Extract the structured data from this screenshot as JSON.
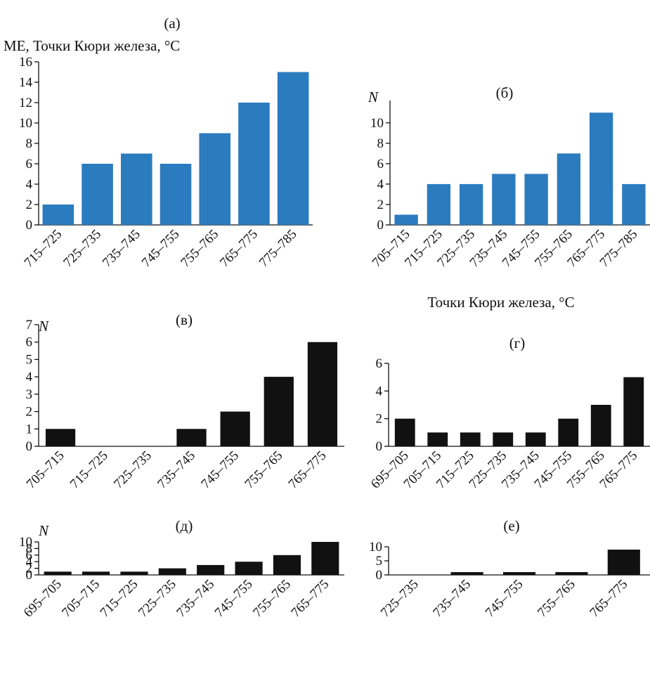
{
  "chart_data": [
    {
      "type": "bar",
      "panel": "(а)",
      "title": "МЕ, Точки Кюри железа, °С",
      "ylabel": "",
      "xlabel": "",
      "color": "#2b7bbf",
      "categories": [
        "715–725",
        "725–735",
        "735–745",
        "745–755",
        "755–765",
        "765–775",
        "775–785"
      ],
      "values": [
        2,
        6,
        7,
        6,
        9,
        12,
        15
      ],
      "ylim": [
        0,
        16
      ],
      "yticks": [
        0,
        2,
        4,
        6,
        8,
        10,
        12,
        14,
        16
      ],
      "grid": false,
      "legend": "none"
    },
    {
      "type": "bar",
      "panel": "(б)",
      "title": "",
      "ylabel": "N",
      "xlabel": "Точки Кюри железа, °С",
      "color": "#2b7bbf",
      "categories": [
        "705–715",
        "715–725",
        "725–735",
        "735–745",
        "745–755",
        "755–765",
        "765–775",
        "775–785"
      ],
      "values": [
        1,
        4,
        4,
        5,
        5,
        7,
        11,
        4
      ],
      "ylim": [
        0,
        11.5
      ],
      "yticks": [
        0,
        2,
        4,
        6,
        8,
        10
      ],
      "grid": false,
      "legend": "none"
    },
    {
      "type": "bar",
      "panel": "(в)",
      "title": "",
      "ylabel": "N",
      "xlabel": "",
      "color": "#111111",
      "categories": [
        "705–715",
        "715–725",
        "725–735",
        "735–745",
        "745–755",
        "755–765",
        "765–775"
      ],
      "values": [
        1,
        0,
        0,
        1,
        2,
        4,
        6
      ],
      "ylim": [
        0,
        7
      ],
      "yticks": [
        0,
        1,
        2,
        3,
        4,
        5,
        6,
        7
      ],
      "grid": false,
      "legend": "none"
    },
    {
      "type": "bar",
      "panel": "(г)",
      "title": "",
      "ylabel": "",
      "xlabel": "",
      "color": "#111111",
      "categories": [
        "695–705",
        "705–715",
        "715–725",
        "725–735",
        "735–745",
        "745–755",
        "755–765",
        "765–775"
      ],
      "values": [
        2,
        1,
        1,
        1,
        1,
        2,
        3,
        5
      ],
      "ylim": [
        0,
        6
      ],
      "yticks": [
        0,
        2,
        4,
        6
      ],
      "grid": false,
      "legend": "none"
    },
    {
      "type": "bar",
      "panel": "(д)",
      "title": "",
      "ylabel": "N",
      "xlabel": "",
      "color": "#111111",
      "categories": [
        "695–705",
        "705–715",
        "715–725",
        "725–735",
        "735–745",
        "745–755",
        "755–765",
        "765–775"
      ],
      "values": [
        1,
        1,
        1,
        2,
        3,
        4,
        6,
        10
      ],
      "ylim": [
        0,
        10
      ],
      "yticks": [
        0,
        2,
        4,
        6,
        8,
        10
      ],
      "grid": false,
      "legend": "none"
    },
    {
      "type": "bar",
      "panel": "(е)",
      "title": "",
      "ylabel": "",
      "xlabel": "",
      "color": "#111111",
      "categories": [
        "725–735",
        "735–745",
        "745–755",
        "755–765",
        "765–775"
      ],
      "values": [
        0,
        1,
        1,
        1,
        9
      ],
      "ylim": [
        0,
        10
      ],
      "yticks": [
        0,
        5,
        10
      ],
      "grid": false,
      "legend": "none"
    }
  ]
}
